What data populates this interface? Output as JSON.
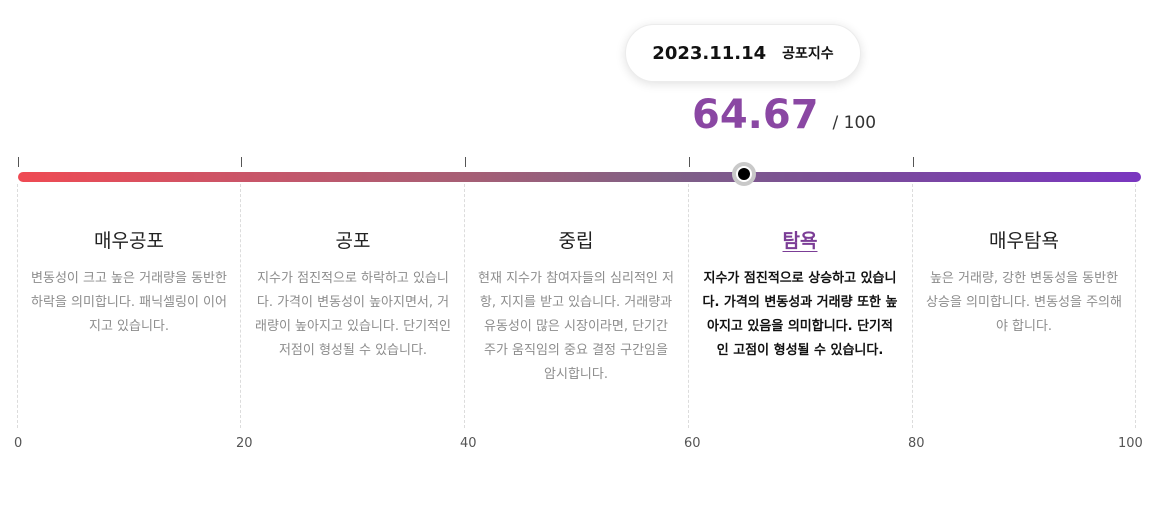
{
  "tooltip": {
    "date": "2023.11.14",
    "label": "공포지수"
  },
  "score": {
    "value": "64.67",
    "max": "/ 100",
    "value_fraction": 0.6467
  },
  "colors": {
    "accent": "#8a47a3",
    "gradient_start": "#ef4a53",
    "gradient_end": "#7a36c0"
  },
  "levels": [
    {
      "title": "매우공포",
      "desc": "변동성이 크고 높은 거래량을 동반한 하락을 의미합니다. 패닉셀링이 이어지고 있습니다."
    },
    {
      "title": "공포",
      "desc": "지수가 점진적으로 하락하고 있습니다. 가격이 변동성이 높아지면서, 거래량이 높아지고 있습니다. 단기적인 저점이 형성될 수 있습니다."
    },
    {
      "title": "중립",
      "desc": "현재 지수가 참여자들의 심리적인 저항, 지지를 받고 있습니다. 거래량과 유동성이 많은 시장이라면, 단기간 주가 움직임의 중요 결정 구간임을 암시합니다."
    },
    {
      "title": "탐욕",
      "desc": "지수가 점진적으로 상승하고 있습니다. 가격의 변동성과 거래량 또한 높아지고 있음을 의미합니다. 단기적인 고점이 형성될 수 있습니다."
    },
    {
      "title": "매우탐욕",
      "desc": "높은 거래량, 강한 변동성을 동반한 상승을 의미합니다. 변동성을 주의해야 합니다."
    }
  ],
  "active_level": "탐욕",
  "axis": [
    "0",
    "20",
    "40",
    "60",
    "80",
    "100"
  ]
}
